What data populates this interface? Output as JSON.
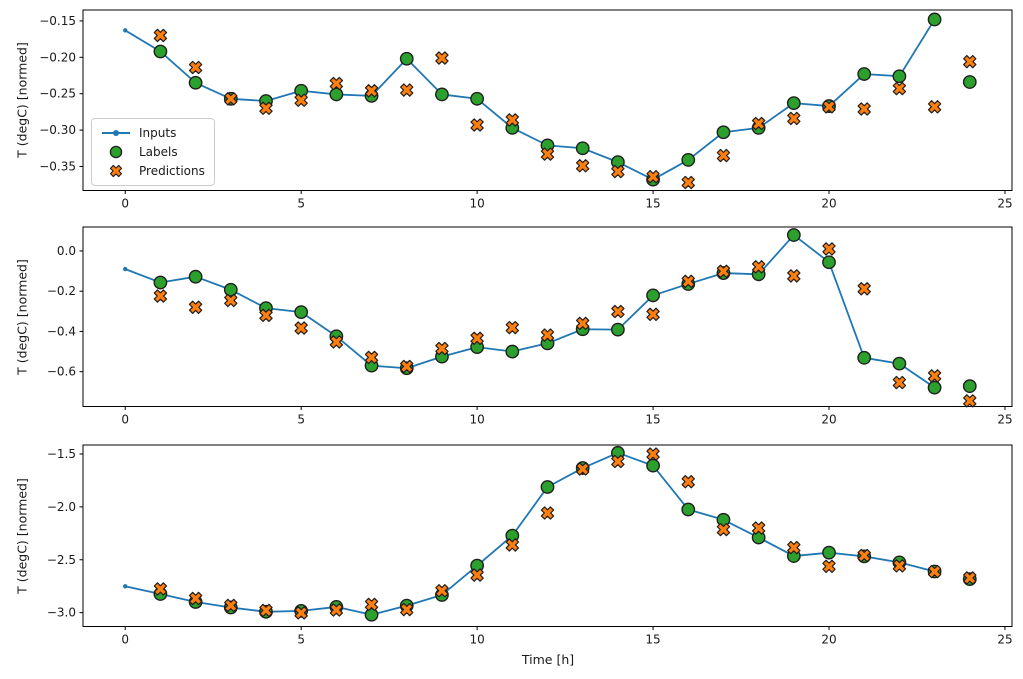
{
  "figure": {
    "background": "#ffffff"
  },
  "colors": {
    "inputs": "#1f77b4",
    "labels": "#2ca02c",
    "predictions": "#ff7f0e",
    "marker_edge": "#1f1f1f",
    "spine": "#000000",
    "text": "#1a1a1a"
  },
  "legend": {
    "items": [
      {
        "label": "Inputs",
        "marker": "line-dot"
      },
      {
        "label": "Labels",
        "marker": "circle"
      },
      {
        "label": "Predictions",
        "marker": "x"
      }
    ]
  },
  "xlabel": "Time [h]",
  "chart_data": [
    {
      "type": "line",
      "title": "",
      "ylabel": "T (degC) [normed]",
      "xlabel": "",
      "grid": false,
      "legend_position": "upper-left-inside",
      "xlim": [
        -1.2,
        25.2
      ],
      "ylim": [
        -0.383,
        -0.135
      ],
      "xticks": {
        "values": [
          0,
          5,
          10,
          15,
          20,
          25
        ],
        "labels": [
          "0",
          "5",
          "10",
          "15",
          "20",
          "25"
        ]
      },
      "yticks": {
        "values": [
          -0.15,
          -0.2,
          -0.25,
          -0.3,
          -0.35
        ],
        "labels": [
          "−0.15",
          "−0.20",
          "−0.25",
          "−0.30",
          "−0.35"
        ]
      },
      "series": [
        {
          "name": "Inputs",
          "type": "line",
          "marker": "dot",
          "color": "#1f77b4",
          "x": [
            0,
            1,
            2,
            3,
            4,
            5,
            6,
            7,
            8,
            9,
            10,
            11,
            12,
            13,
            14,
            15,
            16,
            17,
            18,
            19,
            20,
            21,
            22,
            23
          ],
          "y": [
            -0.163,
            -0.192,
            -0.235,
            -0.257,
            -0.26,
            -0.246,
            -0.251,
            -0.253,
            -0.202,
            -0.251,
            -0.257,
            -0.297,
            -0.321,
            -0.325,
            -0.344,
            -0.368,
            -0.341,
            -0.303,
            -0.297,
            -0.263,
            -0.267,
            -0.223,
            -0.226,
            -0.148
          ]
        },
        {
          "name": "Labels",
          "type": "scatter",
          "marker": "circle",
          "color": "#2ca02c",
          "x": [
            1,
            2,
            3,
            4,
            5,
            6,
            7,
            8,
            9,
            10,
            11,
            12,
            13,
            14,
            15,
            16,
            17,
            18,
            19,
            20,
            21,
            22,
            23,
            24
          ],
          "y": [
            -0.192,
            -0.235,
            -0.257,
            -0.26,
            -0.246,
            -0.251,
            -0.253,
            -0.202,
            -0.251,
            -0.257,
            -0.297,
            -0.321,
            -0.325,
            -0.344,
            -0.368,
            -0.341,
            -0.303,
            -0.297,
            -0.263,
            -0.267,
            -0.223,
            -0.226,
            -0.148,
            -0.234
          ]
        },
        {
          "name": "Predictions",
          "type": "scatter",
          "marker": "X",
          "color": "#ff7f0e",
          "x": [
            1,
            2,
            3,
            4,
            5,
            6,
            7,
            8,
            9,
            10,
            11,
            12,
            13,
            14,
            15,
            16,
            17,
            18,
            19,
            20,
            21,
            22,
            23,
            24
          ],
          "y": [
            -0.17,
            -0.214,
            -0.257,
            -0.27,
            -0.259,
            -0.236,
            -0.246,
            -0.245,
            -0.201,
            -0.293,
            -0.286,
            -0.333,
            -0.349,
            -0.357,
            -0.364,
            -0.372,
            -0.335,
            -0.291,
            -0.284,
            -0.268,
            -0.271,
            -0.243,
            -0.268,
            -0.206
          ]
        }
      ]
    },
    {
      "type": "line",
      "title": "",
      "ylabel": "T (degC) [normed]",
      "xlabel": "",
      "grid": false,
      "xlim": [
        -1.2,
        25.2
      ],
      "ylim": [
        -0.773,
        0.119
      ],
      "xticks": {
        "values": [
          0,
          5,
          10,
          15,
          20,
          25
        ],
        "labels": [
          "0",
          "5",
          "10",
          "15",
          "20",
          "25"
        ]
      },
      "yticks": {
        "values": [
          0.0,
          -0.2,
          -0.4,
          -0.6
        ],
        "labels": [
          "0.0",
          "−0.2",
          "−0.4",
          "−0.6"
        ]
      },
      "series": [
        {
          "name": "Inputs",
          "type": "line",
          "marker": "dot",
          "color": "#1f77b4",
          "x": [
            0,
            1,
            2,
            3,
            4,
            5,
            6,
            7,
            8,
            9,
            10,
            11,
            12,
            13,
            14,
            15,
            16,
            17,
            18,
            19,
            20,
            21,
            22,
            23
          ],
          "y": [
            -0.09,
            -0.157,
            -0.128,
            -0.193,
            -0.284,
            -0.304,
            -0.424,
            -0.57,
            -0.583,
            -0.525,
            -0.478,
            -0.5,
            -0.459,
            -0.389,
            -0.391,
            -0.221,
            -0.164,
            -0.11,
            -0.116,
            0.079,
            -0.056,
            -0.531,
            -0.56,
            -0.679
          ]
        },
        {
          "name": "Labels",
          "type": "scatter",
          "marker": "circle",
          "color": "#2ca02c",
          "x": [
            1,
            2,
            3,
            4,
            5,
            6,
            7,
            8,
            9,
            10,
            11,
            12,
            13,
            14,
            15,
            16,
            17,
            18,
            19,
            20,
            21,
            22,
            23,
            24
          ],
          "y": [
            -0.157,
            -0.128,
            -0.193,
            -0.284,
            -0.304,
            -0.424,
            -0.57,
            -0.583,
            -0.525,
            -0.478,
            -0.5,
            -0.459,
            -0.389,
            -0.391,
            -0.221,
            -0.164,
            -0.11,
            -0.116,
            0.079,
            -0.056,
            -0.531,
            -0.56,
            -0.679,
            -0.672
          ]
        },
        {
          "name": "Predictions",
          "type": "scatter",
          "marker": "X",
          "color": "#ff7f0e",
          "x": [
            1,
            2,
            3,
            4,
            5,
            6,
            7,
            8,
            9,
            10,
            11,
            12,
            13,
            14,
            15,
            16,
            17,
            18,
            19,
            20,
            21,
            22,
            23,
            24
          ],
          "y": [
            -0.224,
            -0.28,
            -0.246,
            -0.32,
            -0.383,
            -0.452,
            -0.529,
            -0.574,
            -0.485,
            -0.434,
            -0.381,
            -0.418,
            -0.36,
            -0.301,
            -0.315,
            -0.151,
            -0.101,
            -0.079,
            -0.124,
            0.01,
            -0.188,
            -0.654,
            -0.621,
            -0.745
          ]
        }
      ]
    },
    {
      "type": "line",
      "title": "",
      "ylabel": "T (degC) [normed]",
      "xlabel": "Time [h]",
      "grid": false,
      "xlim": [
        -1.2,
        25.2
      ],
      "ylim": [
        -3.131,
        -1.415
      ],
      "xticks": {
        "values": [
          0,
          5,
          10,
          15,
          20,
          25
        ],
        "labels": [
          "0",
          "5",
          "10",
          "15",
          "20",
          "25"
        ]
      },
      "yticks": {
        "values": [
          -1.5,
          -2.0,
          -2.5,
          -3.0
        ],
        "labels": [
          "−1.5",
          "−2.0",
          "−2.5",
          "−3.0"
        ]
      },
      "series": [
        {
          "name": "Inputs",
          "type": "line",
          "marker": "dot",
          "color": "#1f77b4",
          "x": [
            0,
            1,
            2,
            3,
            4,
            5,
            6,
            7,
            8,
            9,
            10,
            11,
            12,
            13,
            14,
            15,
            16,
            17,
            18,
            19,
            20,
            21,
            22,
            23
          ],
          "y": [
            -2.751,
            -2.824,
            -2.899,
            -2.951,
            -2.992,
            -2.983,
            -2.946,
            -3.02,
            -2.934,
            -2.833,
            -2.556,
            -2.272,
            -1.812,
            -1.633,
            -1.489,
            -1.61,
            -2.025,
            -2.122,
            -2.29,
            -2.465,
            -2.433,
            -2.468,
            -2.525,
            -2.611
          ]
        },
        {
          "name": "Labels",
          "type": "scatter",
          "marker": "circle",
          "color": "#2ca02c",
          "x": [
            1,
            2,
            3,
            4,
            5,
            6,
            7,
            8,
            9,
            10,
            11,
            12,
            13,
            14,
            15,
            16,
            17,
            18,
            19,
            20,
            21,
            22,
            23,
            24
          ],
          "y": [
            -2.824,
            -2.899,
            -2.951,
            -2.992,
            -2.983,
            -2.946,
            -3.02,
            -2.934,
            -2.833,
            -2.556,
            -2.272,
            -1.812,
            -1.633,
            -1.489,
            -1.61,
            -2.025,
            -2.122,
            -2.29,
            -2.465,
            -2.433,
            -2.468,
            -2.525,
            -2.611,
            -2.683
          ]
        },
        {
          "name": "Predictions",
          "type": "scatter",
          "marker": "X",
          "color": "#ff7f0e",
          "x": [
            1,
            2,
            3,
            4,
            5,
            6,
            7,
            8,
            9,
            10,
            11,
            12,
            13,
            14,
            15,
            16,
            17,
            18,
            19,
            20,
            21,
            22,
            23,
            24
          ],
          "y": [
            -2.776,
            -2.866,
            -2.932,
            -2.979,
            -3.002,
            -2.975,
            -2.922,
            -2.971,
            -2.793,
            -2.645,
            -2.36,
            -2.058,
            -1.642,
            -1.571,
            -1.501,
            -1.762,
            -2.215,
            -2.2,
            -2.385,
            -2.562,
            -2.46,
            -2.558,
            -2.612,
            -2.672
          ]
        }
      ]
    }
  ]
}
